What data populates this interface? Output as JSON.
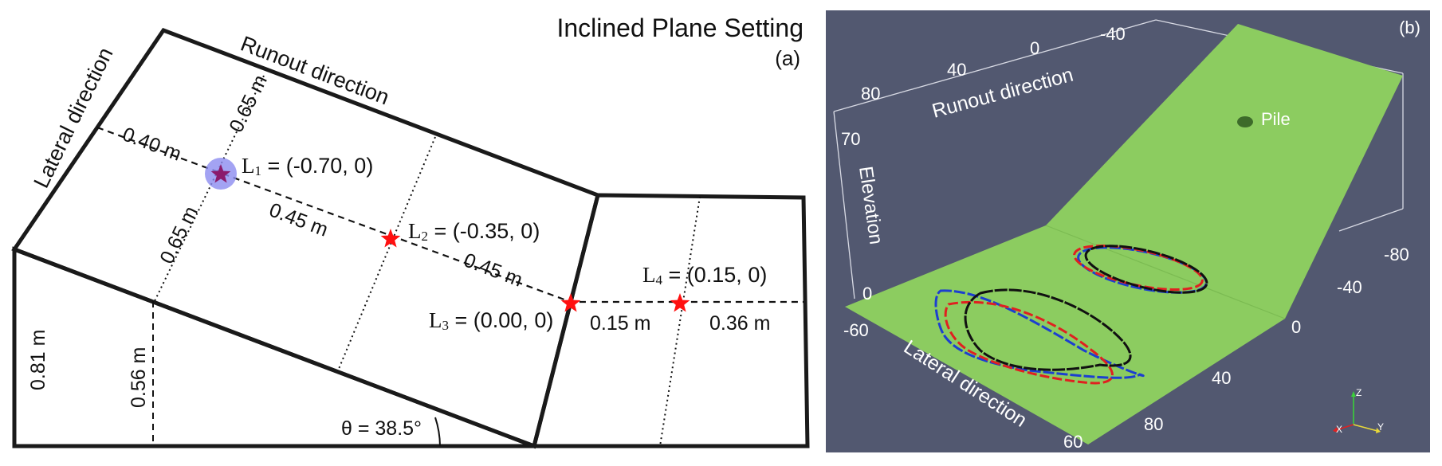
{
  "panel_a": {
    "title": "Inclined Plane Setting",
    "tag": "(a)",
    "runout_label": "Runout direction",
    "lateral_label": "Lateral direction",
    "dims": {
      "d040": "0.40 m",
      "d065_top": "0.65 m",
      "d065_bottom": "0.65 m",
      "d045_a": "0.45 m",
      "d045_b": "0.45 m",
      "d015": "0.15 m",
      "d036": "0.36 m",
      "d081": "0.81 m",
      "d056": "0.56 m"
    },
    "angle": "θ = 38.5°",
    "points": {
      "L1": {
        "letter": "L",
        "sub": "1",
        "rest": " = (-0.70, 0)"
      },
      "L2": {
        "letter": "L",
        "sub": "2",
        "rest": " = (-0.35, 0)"
      },
      "L3": {
        "letter": "L",
        "sub": "3",
        "rest": " = (0.00, 0)"
      },
      "L4": {
        "letter": "L",
        "sub": "4",
        "rest": " = (0.15, 0)"
      }
    },
    "colors": {
      "outline": "#1a1a1a",
      "star": "#ff1010",
      "highlight": "#8c8cf0",
      "highlight_star": "#8b1a6b"
    }
  },
  "panel_b": {
    "tag": "(b)",
    "runout_label": "Runout direction",
    "lateral_label": "Lateral direction",
    "elevation_label": "Elevation",
    "pile_label": "Pile",
    "runout_ticks": [
      "80",
      "40",
      "0",
      "-40"
    ],
    "elevation_ticks": [
      "70",
      "0"
    ],
    "lateral_ticks": [
      "-60",
      "60"
    ],
    "right_ticks": [
      "-80",
      "-40",
      "0",
      "40",
      "80"
    ],
    "axes_triad": {
      "z": "Z",
      "x": "X",
      "y": "Y"
    },
    "colors": {
      "background": "#525870",
      "plane": "#8ccc60",
      "pile": "#3d6b2a",
      "series_black": "#111111",
      "series_red": "#e02020",
      "series_blue": "#1c3fd0"
    }
  }
}
